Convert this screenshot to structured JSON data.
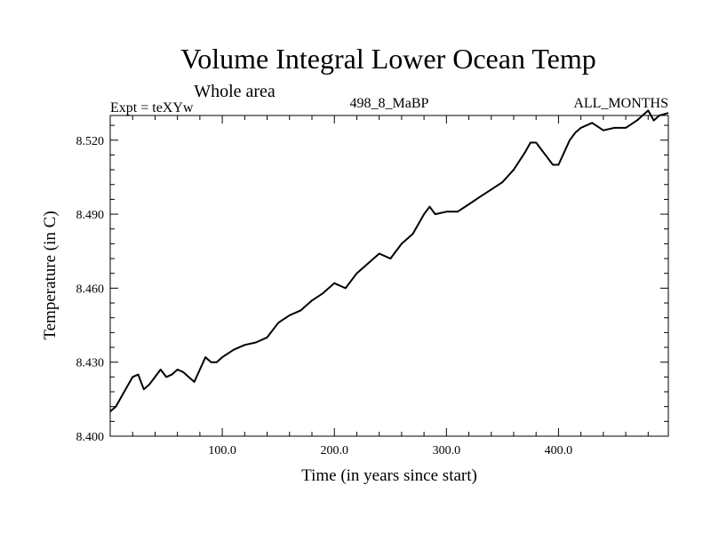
{
  "chart_data": {
    "type": "line",
    "title": "Volume Integral Lower Ocean Temp",
    "subtitle": "Whole area",
    "left_label": "Expt = teXYw",
    "center_label": "498_8_MaBP",
    "right_label": "ALL_MONTHS",
    "xlabel": "Time (in years since start)",
    "ylabel": "Temperature (in C)",
    "xlim": [
      0,
      498
    ],
    "ylim": [
      8.4,
      8.53
    ],
    "x_ticks": [
      100.0,
      200.0,
      300.0,
      400.0
    ],
    "x_tick_labels": [
      "100.0",
      "200.0",
      "300.0",
      "400.0"
    ],
    "y_ticks": [
      8.4,
      8.43,
      8.46,
      8.49,
      8.52
    ],
    "y_tick_labels": [
      "8.400",
      "8.430",
      "8.460",
      "8.490",
      "8.520"
    ],
    "line_color": "#000000",
    "grid": false,
    "series": [
      {
        "x": [
          0,
          5,
          10,
          15,
          20,
          25,
          30,
          35,
          40,
          45,
          50,
          55,
          60,
          65,
          70,
          75,
          80,
          85,
          90,
          95,
          100,
          110,
          120,
          130,
          140,
          150,
          160,
          170,
          180,
          190,
          200,
          210,
          220,
          230,
          240,
          250,
          260,
          270,
          280,
          285,
          290,
          300,
          310,
          320,
          330,
          340,
          350,
          360,
          370,
          375,
          380,
          385,
          390,
          395,
          400,
          405,
          410,
          415,
          420,
          430,
          440,
          450,
          460,
          470,
          480,
          485,
          490,
          498
        ],
        "y": [
          8.41,
          8.412,
          8.416,
          8.42,
          8.424,
          8.425,
          8.419,
          8.421,
          8.424,
          8.427,
          8.424,
          8.425,
          8.427,
          8.426,
          8.424,
          8.422,
          8.427,
          8.432,
          8.43,
          8.43,
          8.432,
          8.435,
          8.437,
          8.438,
          8.44,
          8.446,
          8.449,
          8.451,
          8.455,
          8.458,
          8.462,
          8.46,
          8.466,
          8.47,
          8.474,
          8.472,
          8.478,
          8.482,
          8.49,
          8.493,
          8.49,
          8.491,
          8.491,
          8.494,
          8.497,
          8.5,
          8.503,
          8.508,
          8.515,
          8.519,
          8.519,
          8.516,
          8.513,
          8.51,
          8.51,
          8.515,
          8.52,
          8.523,
          8.525,
          8.527,
          8.524,
          8.525,
          8.525,
          8.528,
          8.532,
          8.528,
          8.53,
          8.531
        ]
      }
    ]
  }
}
